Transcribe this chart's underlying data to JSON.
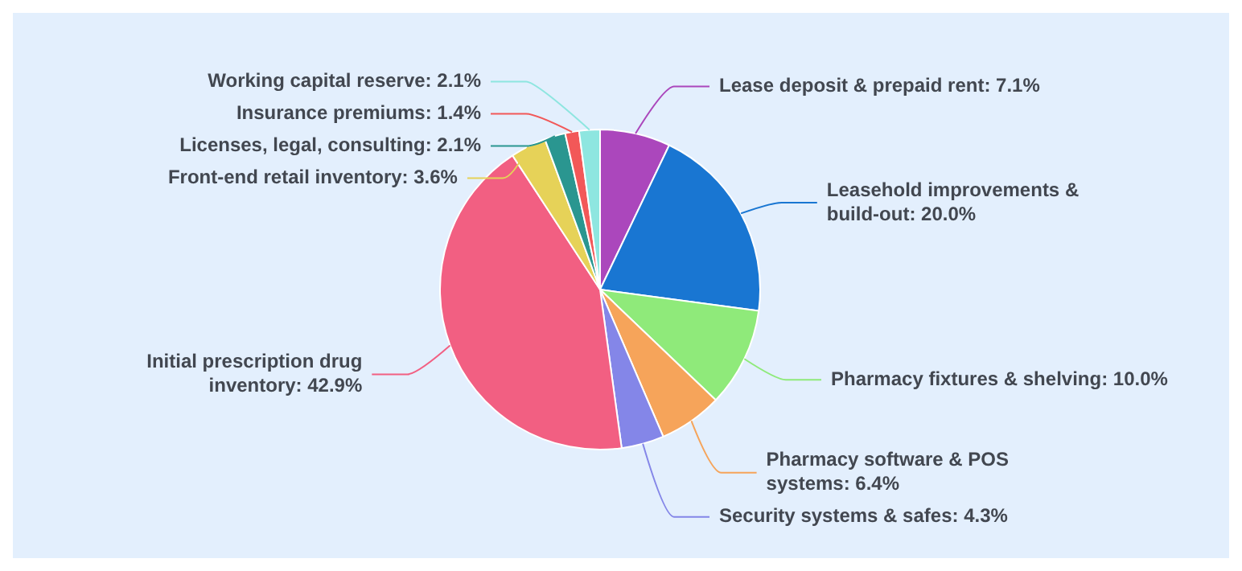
{
  "chart_data": {
    "type": "pie",
    "categories": [
      "Lease deposit & prepaid rent",
      "Leasehold improvements & build-out",
      "Pharmacy fixtures & shelving",
      "Pharmacy software & POS systems",
      "Security systems & safes",
      "Initial prescription drug inventory",
      "Front-end retail inventory",
      "Licenses, legal, consulting",
      "Insurance premiums",
      "Working capital reserve"
    ],
    "values": [
      7.1,
      20.0,
      10.0,
      6.4,
      4.3,
      42.9,
      3.6,
      2.1,
      1.4,
      2.1
    ],
    "value_labels": [
      "7.1%",
      "20.0%",
      "10.0%",
      "6.4%",
      "4.3%",
      "42.9%",
      "3.6%",
      "2.1%",
      "1.4%",
      "2.1%"
    ],
    "colors": [
      "#ab47bc",
      "#1976d2",
      "#8fea7a",
      "#f6a45a",
      "#8486e8",
      "#f25f82",
      "#e6d258",
      "#2a9690",
      "#f25858",
      "#8ee6e0"
    ],
    "legend": false
  }
}
